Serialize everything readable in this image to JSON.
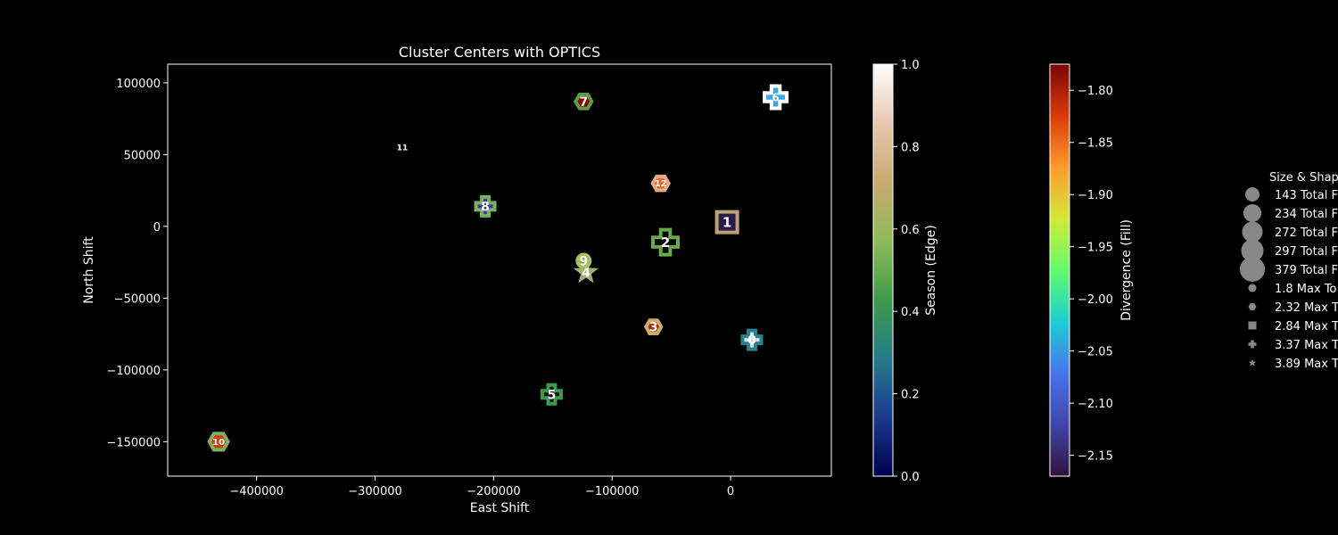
{
  "chart_data": {
    "type": "scatter",
    "title": "Cluster Centers with OPTICS",
    "xlabel": "East Shift",
    "ylabel": "North Shift",
    "xlim": [
      -475000,
      85000
    ],
    "ylim": [
      -174000,
      113000
    ],
    "xticks": [
      -400000,
      -300000,
      -200000,
      -100000,
      0
    ],
    "xtick_labels": [
      "−400000",
      "−300000",
      "−200000",
      "−100000",
      "0"
    ],
    "yticks": [
      -150000,
      -100000,
      -50000,
      0,
      50000,
      100000
    ],
    "ytick_labels": [
      "−150000",
      "−100000",
      "−50000",
      "0",
      "50000",
      "100000"
    ],
    "grid": false,
    "points": [
      {
        "label": "0",
        "x": 18000,
        "y": -79000,
        "shape": "plus",
        "fill": "#dfe0e0",
        "edge": "#26838e",
        "size": 17,
        "text_color": "#ffffff",
        "font": 14
      },
      {
        "label": "1",
        "x": -3000,
        "y": 3000,
        "shape": "square",
        "fill": "#2c1a4a",
        "edge": "#b8a470",
        "size": 19,
        "text_color": "#ffffff",
        "font": 15
      },
      {
        "label": "2",
        "x": -55000,
        "y": -11000,
        "shape": "plus",
        "fill": "#000000",
        "edge": "#6aa84f",
        "size": 24,
        "text_color": "#ffffff",
        "font": 15
      },
      {
        "label": "3",
        "x": -65000,
        "y": -70000,
        "shape": "hexagon",
        "fill": "#b22222",
        "edge": "#c9b060",
        "size": 13,
        "text_color": "#ffffff",
        "font": 14
      },
      {
        "label": "4",
        "x": -122000,
        "y": -32000,
        "shape": "star",
        "fill": "#a0b070",
        "edge": "#a0b070",
        "size": 14,
        "text_color": "#ffffff",
        "font": 14
      },
      {
        "label": "5",
        "x": -151000,
        "y": -117000,
        "shape": "plus",
        "fill": "#111111",
        "edge": "#3c9a4a",
        "size": 17,
        "text_color": "#ffffff",
        "font": 14
      },
      {
        "label": "6",
        "x": 38000,
        "y": 90000,
        "shape": "plus",
        "fill": "#3aa6e8",
        "edge": "#ffffff",
        "size": 21,
        "text_color": "#ffffff",
        "font": 12
      },
      {
        "label": "7",
        "x": -124000,
        "y": 87000,
        "shape": "hexagon",
        "fill": "#8b0000",
        "edge": "#5a9e4a",
        "size": 14,
        "text_color": "#ffffff",
        "font": 14
      },
      {
        "label": "8",
        "x": -207000,
        "y": 14000,
        "shape": "plus",
        "fill": "#3a3a9a",
        "edge": "#7ab060",
        "size": 17,
        "text_color": "#ffffff",
        "font": 14
      },
      {
        "label": "9",
        "x": -124000,
        "y": -24000,
        "shape": "circle",
        "fill": "#8ab040",
        "edge": "#a8c060",
        "size": 10,
        "text_color": "#ffffff",
        "font": 14
      },
      {
        "label": "10",
        "x": -432000,
        "y": -150000,
        "shape": "hexagon",
        "fill": "#d23c0a",
        "edge": "#7ab060",
        "size": 17,
        "text_color": "#ffffff",
        "font": 10
      },
      {
        "label": "11",
        "x": -277000,
        "y": 55000,
        "shape": "circle",
        "fill": "#000000",
        "edge": "#000000",
        "size": 5,
        "text_color": "#ffffff",
        "font": 9
      },
      {
        "label": "12",
        "x": -59000,
        "y": 30000,
        "shape": "hexagon",
        "fill": "#e06a25",
        "edge": "#e3ab88",
        "size": 14,
        "text_color": "#ffffff",
        "font": 10
      }
    ],
    "colorbar_season": {
      "label": "Season (Edge)",
      "min": 0.0,
      "max": 1.0,
      "ticks": [
        0.0,
        0.2,
        0.4,
        0.6,
        0.8,
        1.0
      ],
      "tick_labels": [
        "0.0",
        "0.2",
        "0.4",
        "0.6",
        "0.8",
        "1.0"
      ],
      "colors": [
        "#00004d",
        "#1a3a8f",
        "#267c8a",
        "#3f9a4a",
        "#8fba5a",
        "#c8aa70",
        "#e6c8b0",
        "#ffffff"
      ]
    },
    "colorbar_divergence": {
      "label": "Divergence (Fill)",
      "min": -2.17,
      "max": -1.775,
      "ticks": [
        -2.15,
        -2.1,
        -2.05,
        -2.0,
        -1.95,
        -1.9,
        -1.85,
        -1.8
      ],
      "tick_labels": [
        "−2.15",
        "−2.10",
        "−2.05",
        "−2.00",
        "−1.95",
        "−1.90",
        "−1.85",
        "−1.80"
      ],
      "colors": [
        "#30123b",
        "#4145ab",
        "#4675ed",
        "#1bcfd4",
        "#62fc6b",
        "#d2e935",
        "#fe9b2d",
        "#db3a07",
        "#7a0403"
      ]
    },
    "legend": {
      "title": "Size & Shap",
      "placement": "right, outside plot",
      "size_entries": [
        {
          "label": "143 Total F",
          "size": 8
        },
        {
          "label": "234 Total F",
          "size": 10
        },
        {
          "label": "272 Total F",
          "size": 11.5
        },
        {
          "label": "297 Total F",
          "size": 12.5
        },
        {
          "label": "379 Total F",
          "size": 14
        }
      ],
      "shape_entries": [
        {
          "label": "1.8 Max To",
          "shape": "circle"
        },
        {
          "label": "2.32 Max T",
          "shape": "hexagon"
        },
        {
          "label": "2.84 Max T",
          "shape": "square"
        },
        {
          "label": "3.37 Max T",
          "shape": "plus"
        },
        {
          "label": "3.89 Max T",
          "shape": "star"
        }
      ],
      "marker_color": "#888888"
    }
  }
}
